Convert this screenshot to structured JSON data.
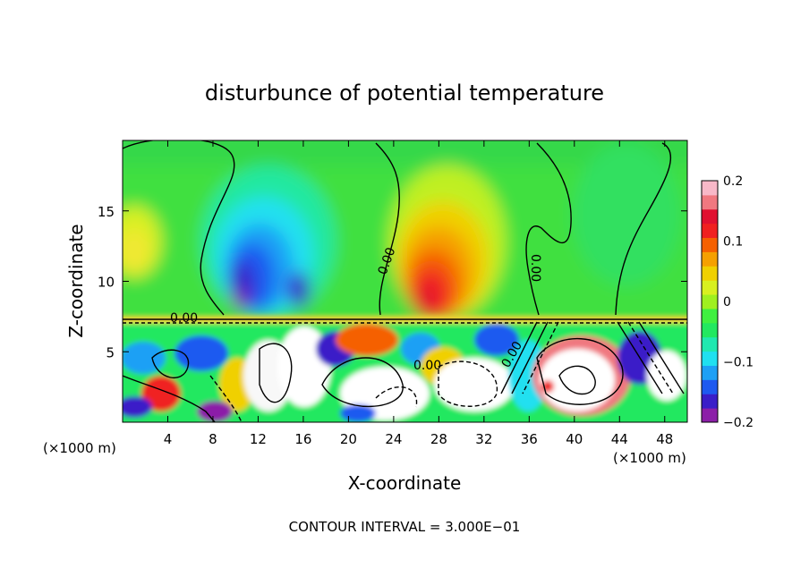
{
  "chart_data": {
    "type": "heatmap",
    "title": "disturbunce of potential temperature",
    "xlabel": "X-coordinate",
    "ylabel": "Z-coordinate",
    "x_unit_left": "(×1000 m)",
    "x_unit_right": "(×1000 m)",
    "xlim": [
      0,
      50
    ],
    "ylim": [
      0,
      20
    ],
    "x_ticks": [
      4,
      8,
      12,
      16,
      20,
      24,
      28,
      32,
      36,
      40,
      44,
      48
    ],
    "x_tick_labels": [
      "4",
      "8",
      "12",
      "16",
      "20",
      "24",
      "28",
      "32",
      "36",
      "40",
      "44",
      "48"
    ],
    "y_ticks": [
      5,
      10,
      15
    ],
    "y_tick_labels": [
      "5",
      "10",
      "15"
    ],
    "colorbar": {
      "range": [
        -0.2,
        0.2
      ],
      "tick_values": [
        0.2,
        0.1,
        0,
        -0.1,
        -0.2
      ],
      "tick_labels": [
        "0.2",
        "0.1",
        "0",
        "−0.1",
        "−0.2"
      ],
      "colors": [
        "#8c1fa8",
        "#3a1ec8",
        "#1e5af0",
        "#1ea0f5",
        "#20e0f0",
        "#20e8b0",
        "#22e860",
        "#40f040",
        "#9ff020",
        "#d8f020",
        "#f0d000",
        "#f5a000",
        "#f56000",
        "#f02020",
        "#e01030",
        "#f07880",
        "#f8b8c8"
      ]
    },
    "contour_label": "0.00",
    "contour_interval_text": "CONTOUR INTERVAL = 3.000E−01",
    "features": [
      {
        "x": 13,
        "z": 10,
        "value": -0.15
      },
      {
        "x": 27.5,
        "z": 10.5,
        "value": 0.15
      },
      {
        "x": 38.5,
        "z": 2.5,
        "value": 0.2
      }
    ]
  }
}
